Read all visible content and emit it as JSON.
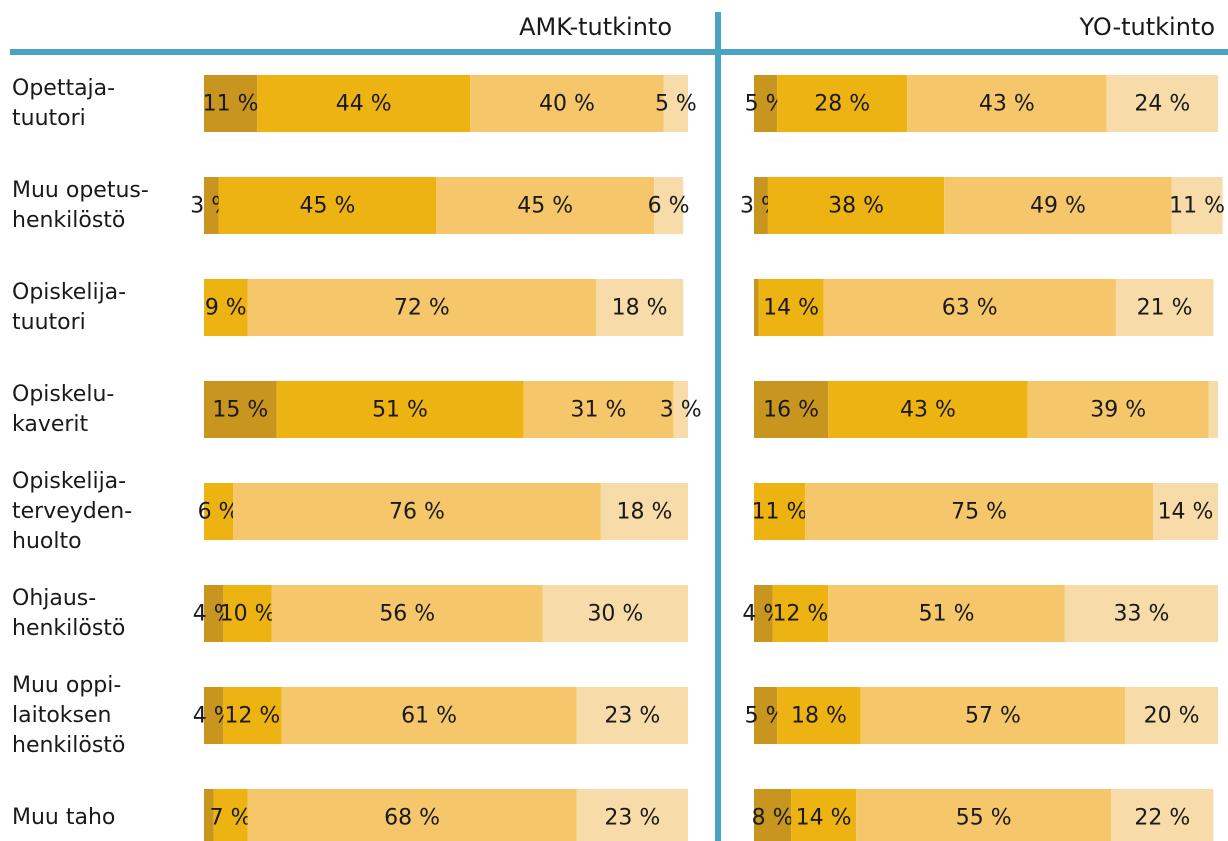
{
  "chart_data": [
    {
      "type": "stacked-bar-horizontal",
      "title": "AMK-tutkinto",
      "categories": [
        "Opettaja-\ntuutori",
        "Muu opetus-\nhenkilöstö",
        "Opiskelija-\ntuutori",
        "Opiskelu-\nkaverit",
        "Opiskelija-\nterveyden-\nhuolto",
        "Ohjaus-\nhenkilöstö",
        "Muu oppi-\nlaitoksen\nhenkilöstö",
        "Muu taho"
      ],
      "xlim": [
        0,
        100
      ],
      "series": [
        {
          "color": "#c8961e",
          "values": [
            11,
            3,
            0,
            15,
            0,
            4,
            4,
            2
          ],
          "value_labels": [
            "11 %",
            "3 %",
            null,
            "15 %",
            null,
            "4 %",
            "4 %",
            null
          ]
        },
        {
          "color": "#edb312",
          "values": [
            44,
            45,
            9,
            51,
            6,
            10,
            12,
            7
          ],
          "value_labels": [
            "44 %",
            "45 %",
            "9 %",
            "51 %",
            "6 %",
            "10 %",
            "12 %",
            "7 %"
          ]
        },
        {
          "color": "#f5c76a",
          "values": [
            40,
            45,
            72,
            31,
            76,
            56,
            61,
            68
          ],
          "value_labels": [
            "40 %",
            "45 %",
            "72 %",
            "31 %",
            "76 %",
            "56 %",
            "61 %",
            "68 %"
          ]
        },
        {
          "color": "#f7dcaa",
          "values": [
            5,
            6,
            18,
            3,
            18,
            30,
            23,
            23
          ],
          "value_labels": [
            "5 %",
            "6 %",
            "18 %",
            "3 %",
            "18 %",
            "30 %",
            "23 %",
            "23 %"
          ]
        }
      ]
    },
    {
      "type": "stacked-bar-horizontal",
      "title": "YO-tutkinto",
      "xlim": [
        0,
        100
      ],
      "series": [
        {
          "color": "#c8961e",
          "values": [
            5,
            3,
            1,
            16,
            0,
            4,
            5,
            8
          ],
          "value_labels": [
            "5 %",
            "3 %",
            null,
            "16 %",
            null,
            "4 %",
            "5 %",
            "8 %"
          ]
        },
        {
          "color": "#edb312",
          "values": [
            28,
            38,
            14,
            43,
            11,
            12,
            18,
            14
          ],
          "value_labels": [
            "28 %",
            "38 %",
            "14 %",
            "43 %",
            "11 %",
            "12 %",
            "18 %",
            "14 %"
          ]
        },
        {
          "color": "#f5c76a",
          "values": [
            43,
            49,
            63,
            39,
            75,
            51,
            57,
            55
          ],
          "value_labels": [
            "43 %",
            "49 %",
            "63 %",
            "39 %",
            "75 %",
            "51 %",
            "57 %",
            "55 %"
          ]
        },
        {
          "color": "#f7dcaa",
          "values": [
            24,
            11,
            21,
            2,
            14,
            33,
            20,
            22
          ],
          "value_labels": [
            "24 %",
            "11 %",
            "21 %",
            null,
            "14 %",
            "33 %",
            "20 %",
            "22 %"
          ]
        }
      ]
    }
  ]
}
